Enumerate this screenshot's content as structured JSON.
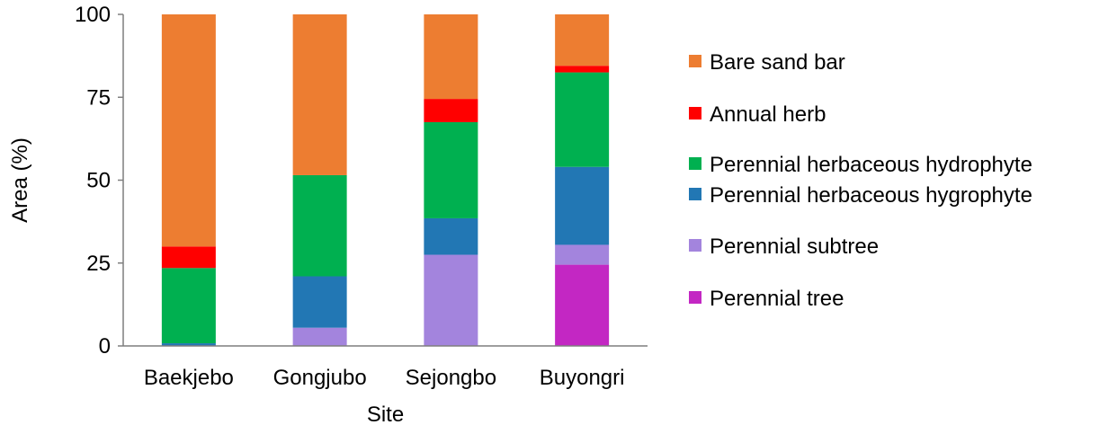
{
  "chart_data": {
    "type": "bar",
    "stacked": true,
    "title": "",
    "xlabel": "Site",
    "ylabel": "Area (%)",
    "ylim": [
      0,
      100
    ],
    "yticks": [
      "0",
      "25",
      "50",
      "75",
      "100"
    ],
    "grid": false,
    "legend_position": "right",
    "categories": [
      "Baekjebo",
      "Gongjubo",
      "Sejongbo",
      "Buyongri"
    ],
    "series": [
      {
        "name": "Perennial tree",
        "color": "#c327c3",
        "values": [
          0,
          0,
          0,
          24.5
        ]
      },
      {
        "name": "Perennial subtree",
        "color": "#a384dd",
        "values": [
          0,
          5.5,
          27.5,
          6
        ]
      },
      {
        "name": "Perennial herbaceous hygrophyte",
        "color": "#2277b4",
        "values": [
          0.8,
          15.5,
          11,
          23.5
        ]
      },
      {
        "name": "Perennial herbaceous hydrophyte",
        "color": "#00b050",
        "values": [
          22.7,
          30.5,
          29,
          28.5
        ]
      },
      {
        "name": "Annual herb",
        "color": "#ff0000",
        "values": [
          6.5,
          0,
          7,
          2
        ]
      },
      {
        "name": "Bare sand bar",
        "color": "#ed7d31",
        "values": [
          70,
          48.5,
          25.5,
          15.5
        ]
      }
    ],
    "legend_order": [
      "Bare sand bar",
      "Annual herb",
      "Perennial herbaceous hydrophyte",
      "Perennial herbaceous hygrophyte",
      "Perennial subtree",
      "Perennial tree"
    ]
  }
}
